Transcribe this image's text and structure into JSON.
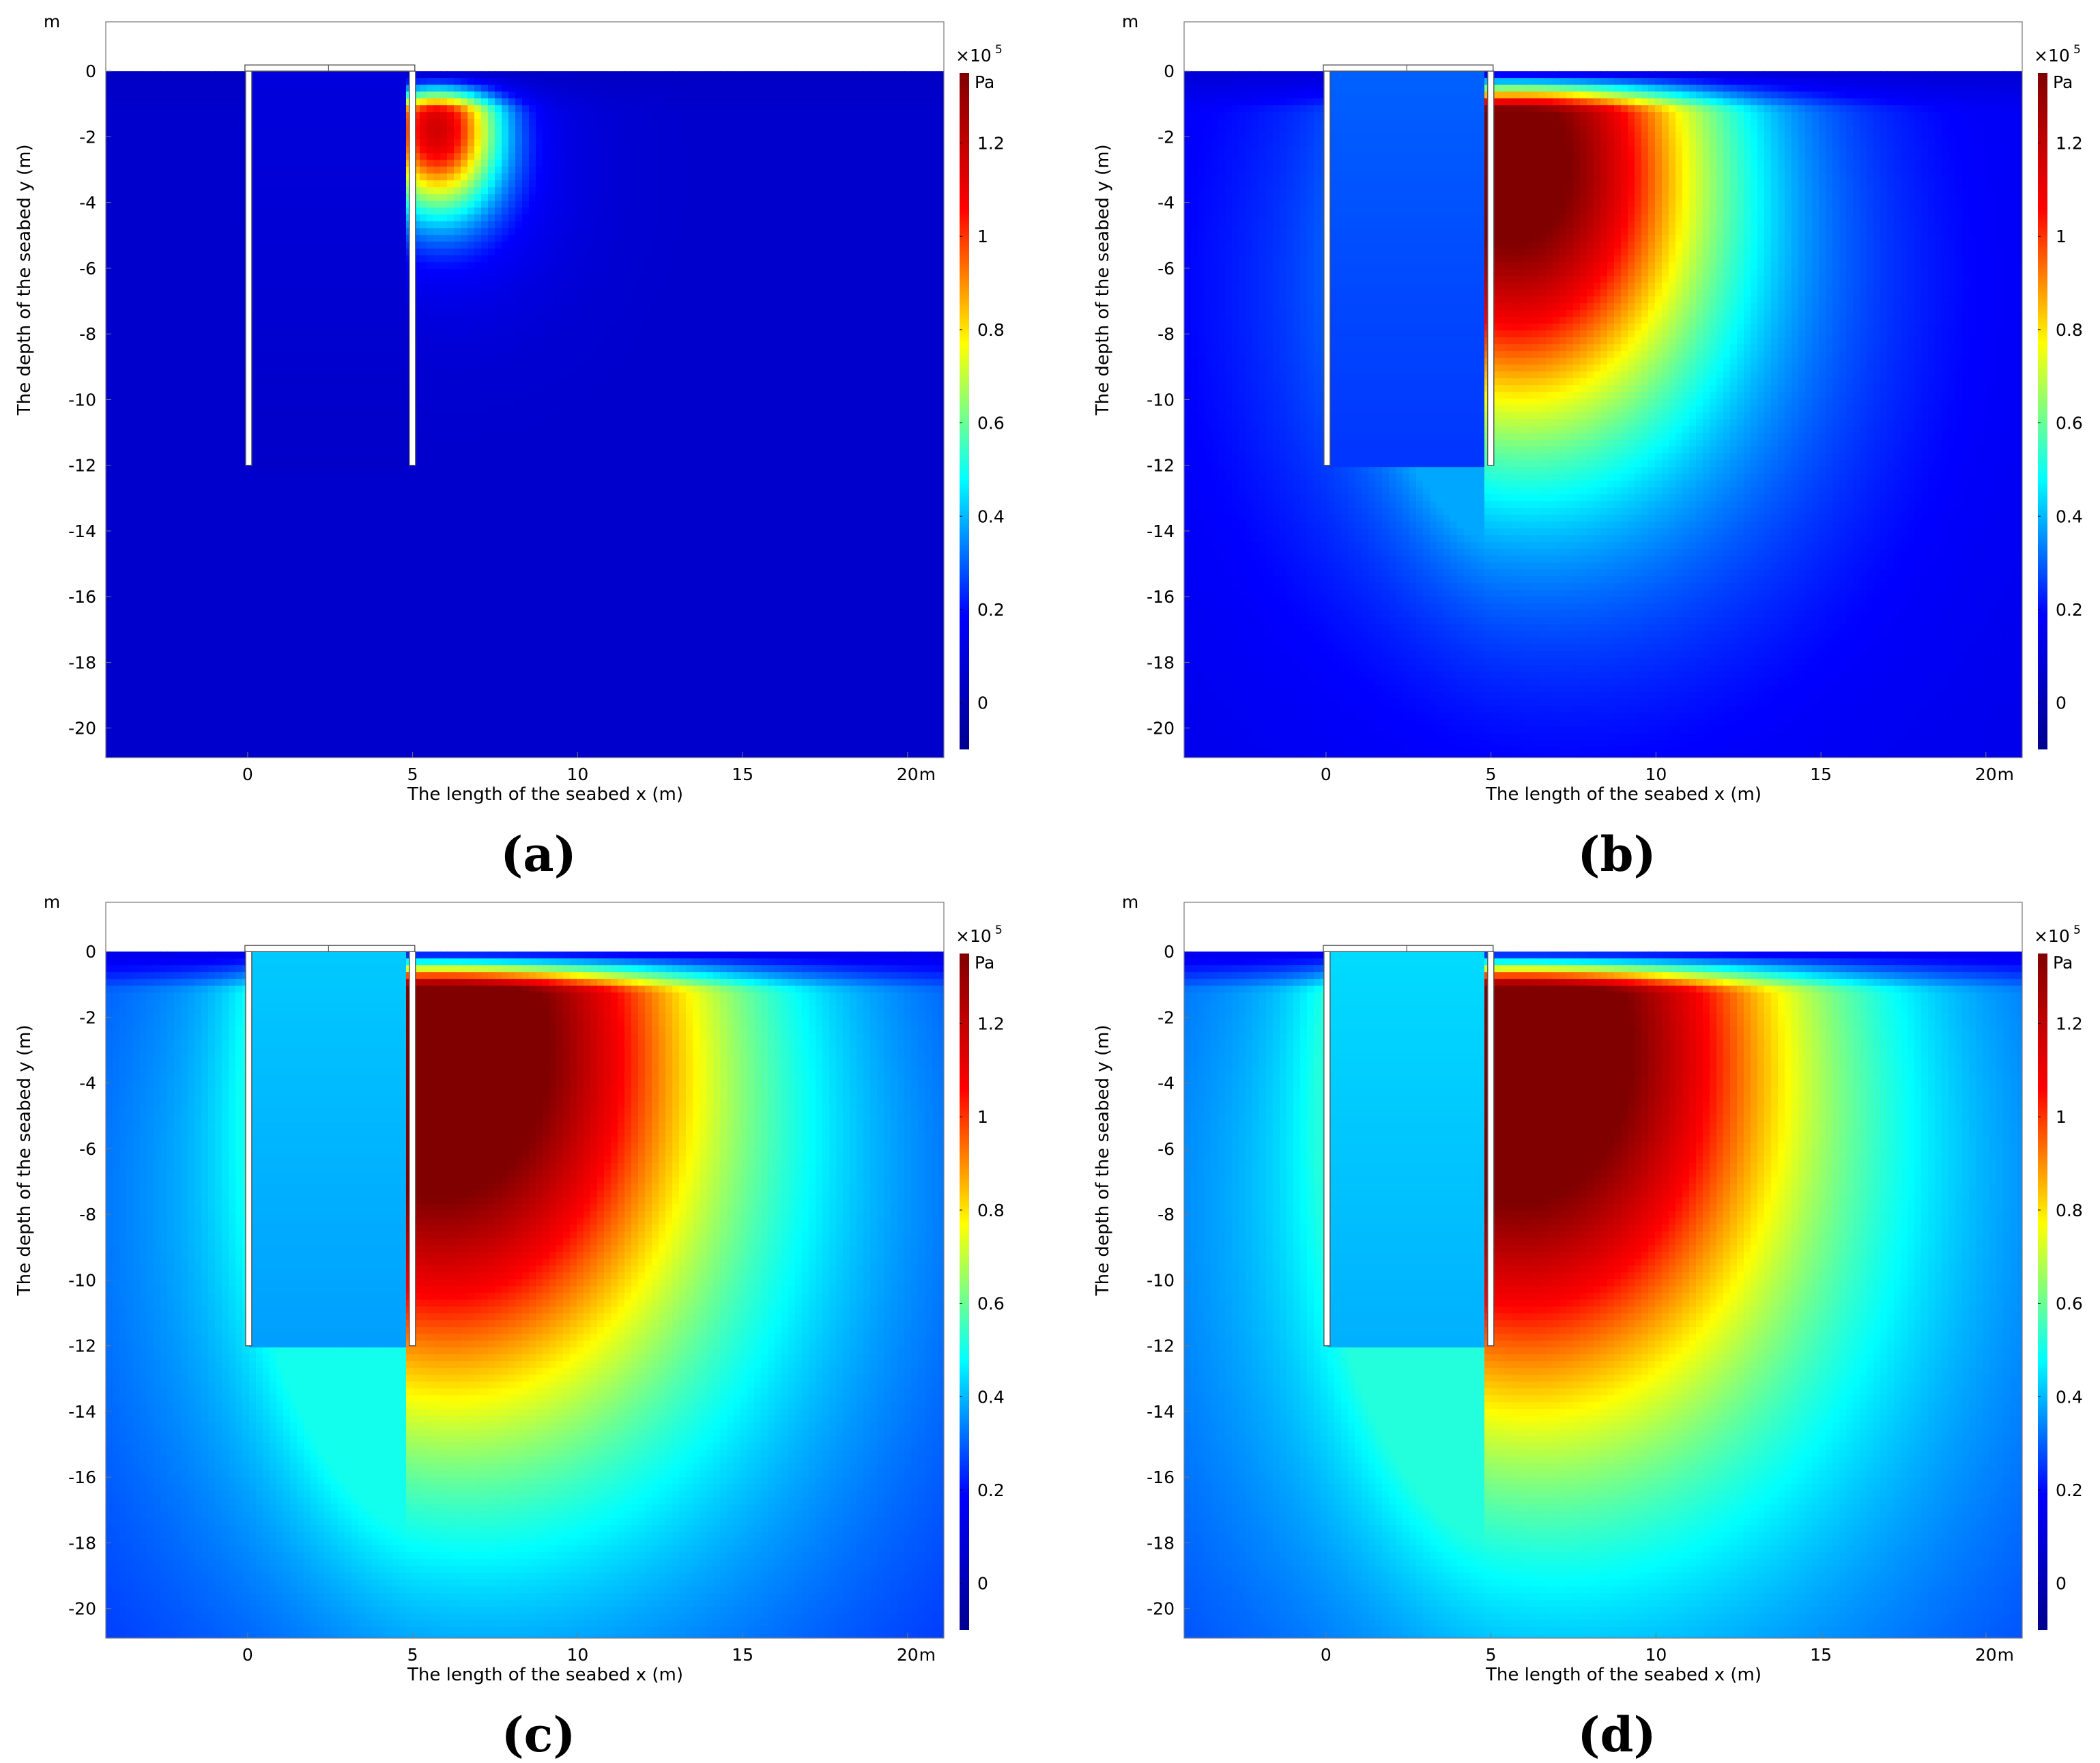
{
  "figure": {
    "panel_labels": [
      "(a)",
      "(b)",
      "(c)",
      "(d)"
    ]
  },
  "colormap": {
    "name": "jet",
    "stops": [
      "#00008f",
      "#0000ff",
      "#00ffff",
      "#ffff00",
      "#ff0000",
      "#800000"
    ]
  },
  "chart_data": [
    {
      "type": "heatmap",
      "panel": "(a)",
      "xlabel": "The length of the seabed x (m)",
      "ylabel": "The depth of the seabed y (m)",
      "x_unit": "m",
      "y_unit": "m",
      "x_ticks": [
        0,
        5,
        10,
        15,
        20
      ],
      "y_ticks": [
        0,
        -2,
        -4,
        -6,
        -8,
        -10,
        -12,
        -14,
        -16,
        -18,
        -20
      ],
      "xlim": [
        -4.3,
        21.1
      ],
      "ylim": [
        -20.9,
        1.5
      ],
      "colorbar": {
        "unit": "Pa",
        "multiplier": "×10",
        "exponent": "5",
        "ticks": [
          0,
          0.2,
          0.4,
          0.6,
          0.8,
          1,
          1.2
        ],
        "tick_labels": [
          "0",
          "0.2",
          "0.4",
          "0.6",
          "0.8",
          "1",
          "1.2"
        ],
        "range": [
          -0.1,
          1.35
        ]
      },
      "structure": {
        "walls_x": [
          0,
          4.9
        ],
        "wall_bottom_y": -12,
        "top_y": 0
      },
      "field": {
        "background": 0.06,
        "peak_value": 1.02,
        "peak_location": [
          5.7,
          -1.7
        ],
        "plume_spread": 2.0,
        "inside_value": 0.1
      }
    },
    {
      "type": "heatmap",
      "panel": "(b)",
      "xlabel": "The length of the seabed x (m)",
      "ylabel": "The depth of the seabed y (m)",
      "x_unit": "m",
      "y_unit": "m",
      "x_ticks": [
        0,
        5,
        10,
        15,
        20
      ],
      "y_ticks": [
        0,
        -2,
        -4,
        -6,
        -8,
        -10,
        -12,
        -14,
        -16,
        -18,
        -20
      ],
      "xlim": [
        -4.3,
        21.1
      ],
      "ylim": [
        -20.9,
        1.5
      ],
      "colorbar": {
        "unit": "Pa",
        "multiplier": "×10",
        "exponent": "5",
        "ticks": [
          0,
          0.2,
          0.4,
          0.6,
          0.8,
          1,
          1.2
        ],
        "tick_labels": [
          "0",
          "0.2",
          "0.4",
          "0.6",
          "0.8",
          "1",
          "1.2"
        ],
        "range": [
          -0.1,
          1.35
        ]
      },
      "structure": {
        "walls_x": [
          0,
          4.9
        ],
        "wall_bottom_y": -12,
        "top_y": 0
      },
      "field": {
        "background": 0.13,
        "peak_value": 1.22,
        "peak_location": [
          5.5,
          -2.5
        ],
        "plume_spread": 6.0,
        "inside_value": 0.3
      }
    },
    {
      "type": "heatmap",
      "panel": "(c)",
      "xlabel": "The length of the seabed x (m)",
      "ylabel": "The depth of the seabed y (m)",
      "x_unit": "m",
      "y_unit": "m",
      "x_ticks": [
        0,
        5,
        10,
        15,
        20
      ],
      "y_ticks": [
        0,
        -2,
        -4,
        -6,
        -8,
        -10,
        -12,
        -14,
        -16,
        -18,
        -20
      ],
      "xlim": [
        -4.3,
        21.1
      ],
      "ylim": [
        -20.9,
        1.5
      ],
      "colorbar": {
        "unit": "Pa",
        "multiplier": "×10",
        "exponent": "5",
        "ticks": [
          0,
          0.2,
          0.4,
          0.6,
          0.8,
          1,
          1.2
        ],
        "tick_labels": [
          "0",
          "0.2",
          "0.4",
          "0.6",
          "0.8",
          "1",
          "1.2"
        ],
        "range": [
          -0.1,
          1.35
        ]
      },
      "structure": {
        "walls_x": [
          0,
          4.9
        ],
        "wall_bottom_y": -12,
        "top_y": 0
      },
      "field": {
        "background": 0.2,
        "peak_value": 1.3,
        "peak_location": [
          5.5,
          -2.3
        ],
        "plume_spread": 8.0,
        "inside_value": 0.42
      }
    },
    {
      "type": "heatmap",
      "panel": "(d)",
      "xlabel": "The length of the seabed x (m)",
      "ylabel": "The depth of the seabed y (m)",
      "x_unit": "m",
      "y_unit": "m",
      "x_ticks": [
        0,
        5,
        10,
        15,
        20
      ],
      "y_ticks": [
        0,
        -2,
        -4,
        -6,
        -8,
        -10,
        -12,
        -14,
        -16,
        -18,
        -20
      ],
      "xlim": [
        -4.3,
        21.1
      ],
      "ylim": [
        -20.9,
        1.5
      ],
      "colorbar": {
        "unit": "Pa",
        "multiplier": "×10",
        "exponent": "5",
        "ticks": [
          0,
          0.2,
          0.4,
          0.6,
          0.8,
          1,
          1.2
        ],
        "tick_labels": [
          "0",
          "0.2",
          "0.4",
          "0.6",
          "0.8",
          "1",
          "1.2"
        ],
        "range": [
          -0.1,
          1.35
        ]
      },
      "structure": {
        "walls_x": [
          0,
          4.9
        ],
        "wall_bottom_y": -12,
        "top_y": 0
      },
      "field": {
        "background": 0.22,
        "peak_value": 1.3,
        "peak_location": [
          5.5,
          -2.3
        ],
        "plume_spread": 8.2,
        "inside_value": 0.44
      }
    }
  ]
}
